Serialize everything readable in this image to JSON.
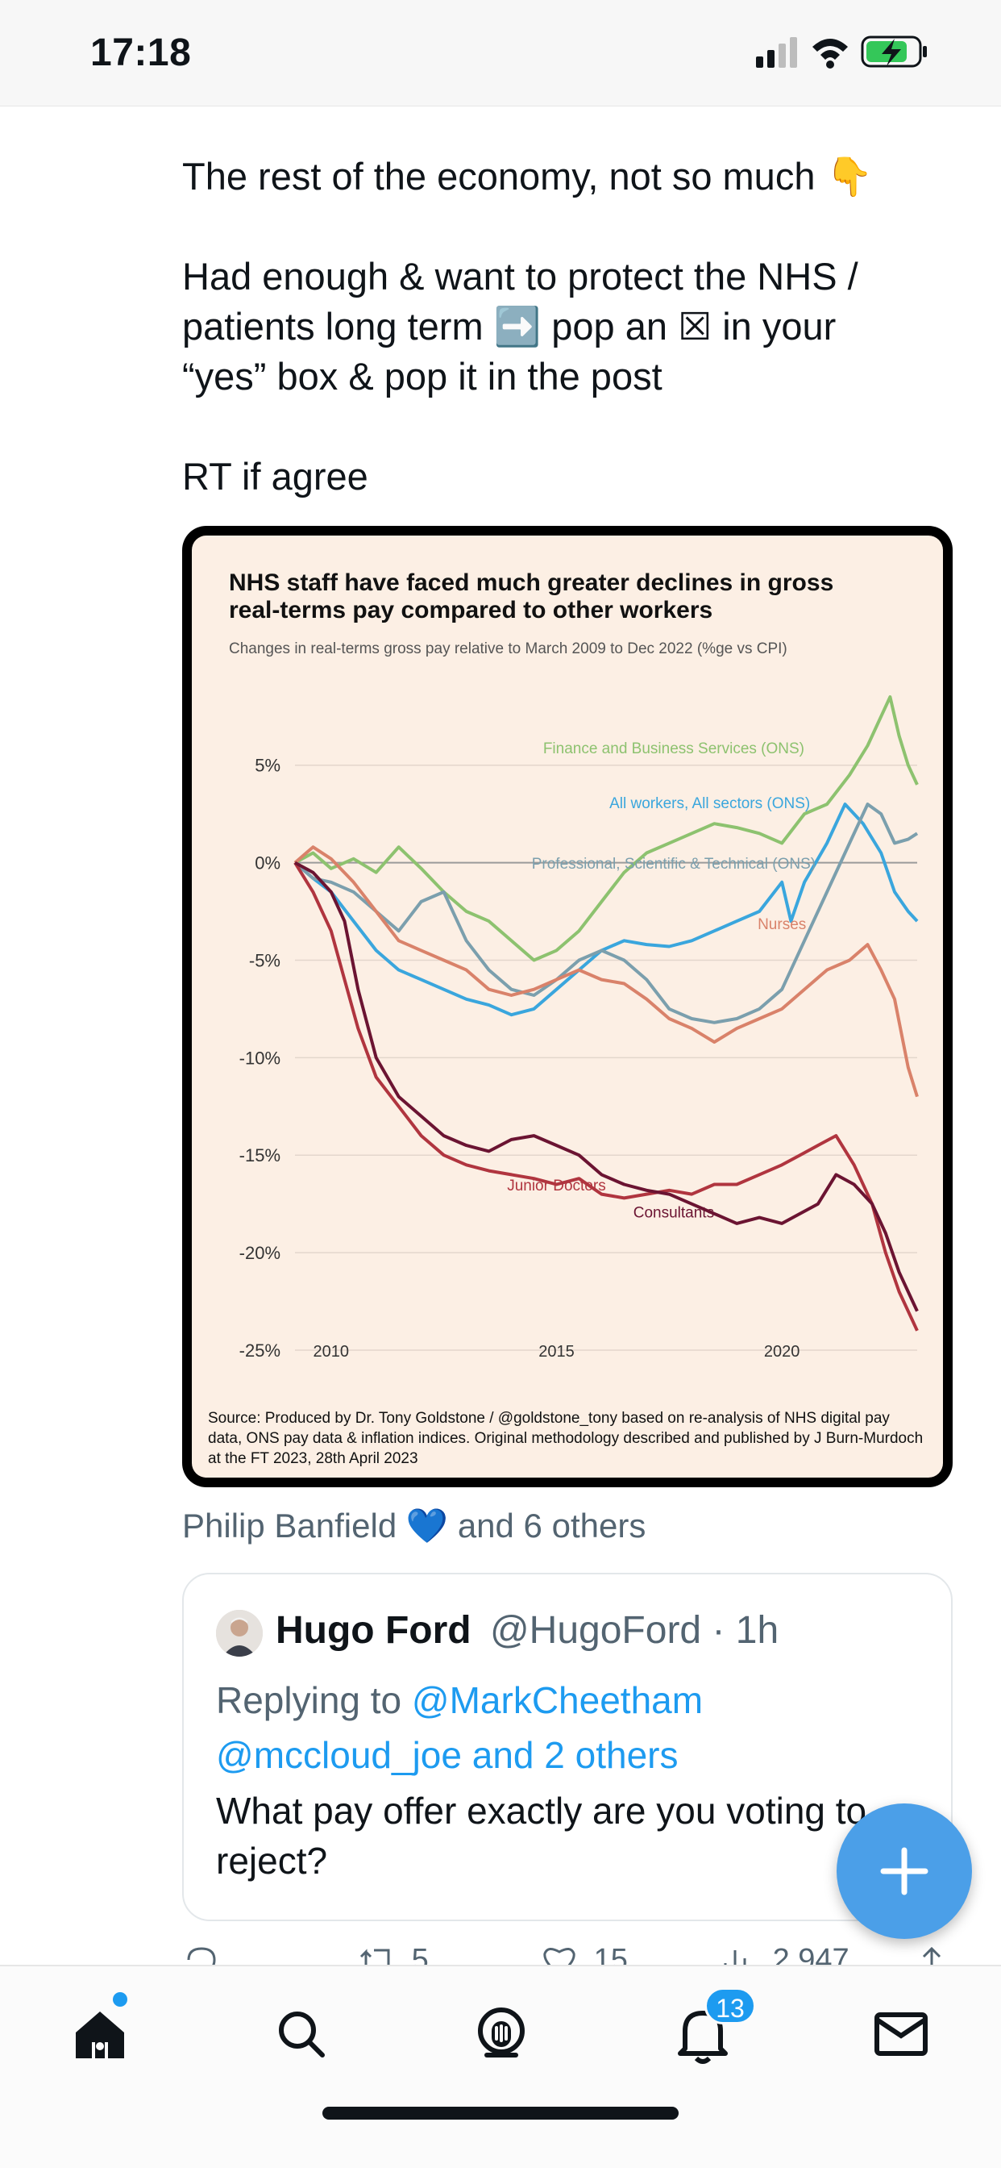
{
  "status_bar": {
    "time": "17:18"
  },
  "tweet": {
    "lines": [
      "The rest of the economy, not so much 👇",
      "Had enough & want to protect the NHS / patients long term ➡️ pop an ☒ in your “yes” box & pop it in the post",
      "RT if agree"
    ]
  },
  "media": {
    "source_note": "Source: Produced by Dr. Tony Goldstone / @goldstone_tony based on re-analysis of NHS digital pay data, ONS pay data & inflation indices. Original methodology described and published by J Burn-Murdoch at the FT 2023, 28th April 2023"
  },
  "chart_data": {
    "type": "line",
    "title": "NHS staff have faced much greater declines in gross real-terms pay compared to other workers",
    "subtitle": "Changes in real-terms gross pay relative to March 2009 to Dec 2022 (%ge vs CPI)",
    "xlabel": "",
    "ylabel": "",
    "xlim": [
      2009.2,
      2023.0
    ],
    "ylim": [
      -25,
      9
    ],
    "x_ticks": [
      2010,
      2015,
      2020
    ],
    "y_ticks": [
      5,
      0,
      -5,
      -10,
      -15,
      -20,
      -25
    ],
    "y_tick_labels": [
      "5%",
      "0%",
      "-5%",
      "-10%",
      "-15%",
      "-20%",
      "-25%"
    ],
    "grid": true,
    "legend": "inline labels",
    "series": [
      {
        "name": "Finance and Business Services (ONS)",
        "color": "#8dc26f",
        "x": [
          2009.2,
          2009.6,
          2010.0,
          2010.5,
          2011.0,
          2011.5,
          2012.0,
          2012.5,
          2013.0,
          2013.5,
          2014.0,
          2014.5,
          2015.0,
          2015.5,
          2016.0,
          2016.5,
          2017.0,
          2017.5,
          2018.0,
          2018.5,
          2019.0,
          2019.5,
          2020.0,
          2020.5,
          2021.0,
          2021.5,
          2021.9,
          2022.2,
          2022.4,
          2022.6,
          2022.8,
          2023.0
        ],
        "y": [
          0,
          0.5,
          -0.3,
          0.2,
          -0.5,
          0.8,
          -0.3,
          -1.5,
          -2.5,
          -3,
          -4,
          -5,
          -4.5,
          -3.5,
          -2,
          -0.5,
          0.5,
          1,
          1.5,
          2,
          1.8,
          1.5,
          1,
          2.5,
          3,
          4.5,
          6,
          7.5,
          8.5,
          6.5,
          5,
          4
        ]
      },
      {
        "name": "All workers, All sectors (ONS)",
        "color": "#3aa6dd",
        "x": [
          2009.2,
          2009.6,
          2010.0,
          2010.5,
          2011.0,
          2011.5,
          2012.0,
          2012.5,
          2013.0,
          2013.5,
          2014.0,
          2014.5,
          2015.0,
          2015.5,
          2016.0,
          2016.5,
          2017.0,
          2017.5,
          2018.0,
          2018.5,
          2019.0,
          2019.5,
          2020.0,
          2020.2,
          2020.5,
          2021.0,
          2021.4,
          2021.8,
          2022.2,
          2022.5,
          2022.8,
          2023.0
        ],
        "y": [
          0,
          -0.8,
          -1.5,
          -3,
          -4.5,
          -5.5,
          -6,
          -6.5,
          -7,
          -7.3,
          -7.8,
          -7.5,
          -6.5,
          -5.5,
          -4.5,
          -4,
          -4.2,
          -4.3,
          -4,
          -3.5,
          -3,
          -2.5,
          -1,
          -3,
          -1,
          1,
          3,
          2,
          0.5,
          -1.5,
          -2.5,
          -3
        ]
      },
      {
        "name": "Professional, Scientific & Technical (ONS)",
        "color": "#7b9fad",
        "x": [
          2009.2,
          2009.6,
          2010.0,
          2010.5,
          2011.0,
          2011.5,
          2012.0,
          2012.5,
          2013.0,
          2013.5,
          2014.0,
          2014.5,
          2015.0,
          2015.5,
          2016.0,
          2016.5,
          2017.0,
          2017.5,
          2018.0,
          2018.5,
          2019.0,
          2019.5,
          2020.0,
          2020.5,
          2021.0,
          2021.5,
          2021.9,
          2022.2,
          2022.5,
          2022.8,
          2023.0
        ],
        "y": [
          0,
          -0.8,
          -1,
          -1.5,
          -2.5,
          -3.5,
          -2,
          -1.5,
          -4,
          -5.5,
          -6.5,
          -6.8,
          -6,
          -5,
          -4.5,
          -5,
          -6,
          -7.5,
          -8,
          -8.2,
          -8,
          -7.5,
          -6.5,
          -4,
          -1.5,
          1,
          3,
          2.5,
          1,
          1.2,
          1.5
        ]
      },
      {
        "name": "Nurses",
        "color": "#d9826a",
        "x": [
          2009.2,
          2009.6,
          2010.0,
          2010.5,
          2011.0,
          2011.5,
          2012.0,
          2012.5,
          2013.0,
          2013.5,
          2014.0,
          2014.5,
          2015.0,
          2015.5,
          2016.0,
          2016.5,
          2017.0,
          2017.5,
          2018.0,
          2018.5,
          2019.0,
          2019.5,
          2020.0,
          2020.5,
          2021.0,
          2021.5,
          2021.9,
          2022.2,
          2022.5,
          2022.8,
          2023.0
        ],
        "y": [
          0,
          0.8,
          0.2,
          -1,
          -2.5,
          -4,
          -4.5,
          -5,
          -5.5,
          -6.5,
          -6.8,
          -6.5,
          -6,
          -5.5,
          -6,
          -6.2,
          -7,
          -8,
          -8.5,
          -9.2,
          -8.5,
          -8,
          -7.5,
          -6.5,
          -5.5,
          -5,
          -4.2,
          -5.5,
          -7,
          -10.5,
          -12
        ]
      },
      {
        "name": "Junior Doctors",
        "color": "#b0353f",
        "x": [
          2009.2,
          2009.6,
          2010.0,
          2010.3,
          2010.6,
          2011.0,
          2011.5,
          2012.0,
          2012.5,
          2013.0,
          2013.5,
          2014.0,
          2014.5,
          2015.0,
          2015.5,
          2016.0,
          2016.5,
          2017.0,
          2017.5,
          2018.0,
          2018.5,
          2019.0,
          2019.5,
          2020.0,
          2020.4,
          2020.8,
          2021.2,
          2021.6,
          2022.0,
          2022.3,
          2022.6,
          2022.9,
          2023.0
        ],
        "y": [
          0,
          -1.5,
          -3.5,
          -6,
          -8.5,
          -11,
          -12.5,
          -14,
          -15,
          -15.5,
          -15.8,
          -16,
          -16.2,
          -16.5,
          -16.2,
          -17,
          -17.2,
          -17,
          -16.8,
          -17,
          -16.5,
          -16.5,
          -16,
          -15.5,
          -15,
          -14.5,
          -14,
          -15.5,
          -17.5,
          -20,
          -22,
          -23.5,
          -24
        ]
      },
      {
        "name": "Consultants",
        "color": "#6b1432",
        "x": [
          2009.2,
          2009.6,
          2010.0,
          2010.3,
          2010.6,
          2011.0,
          2011.5,
          2012.0,
          2012.5,
          2013.0,
          2013.5,
          2014.0,
          2014.5,
          2015.0,
          2015.5,
          2016.0,
          2016.5,
          2017.0,
          2017.5,
          2018.0,
          2018.5,
          2019.0,
          2019.5,
          2020.0,
          2020.4,
          2020.8,
          2021.2,
          2021.6,
          2022.0,
          2022.3,
          2022.6,
          2022.9,
          2023.0
        ],
        "y": [
          0,
          -0.5,
          -1.5,
          -3,
          -6.5,
          -10,
          -12,
          -13,
          -14,
          -14.5,
          -14.8,
          -14.2,
          -14,
          -14.5,
          -15,
          -16,
          -16.5,
          -16.8,
          -17,
          -17.5,
          -18,
          -18.5,
          -18.2,
          -18.5,
          -18,
          -17.5,
          -16,
          -16.5,
          -17.5,
          -19,
          -21,
          -22.5,
          -23
        ]
      }
    ]
  },
  "likers": {
    "names": "Philip Banfield",
    "emoji": "💙",
    "suffix": "and 6 others"
  },
  "reply": {
    "name": "Hugo Ford",
    "handle": "@HugoFord · 1h",
    "replying_prefix": "Replying to",
    "replying_to": "@MarkCheetham @mccloud_joe and 2 others",
    "body": "What pay offer exactly are you voting to reject?"
  },
  "actions": {
    "retweets": "5",
    "likes": "15",
    "views": "2,947"
  },
  "tabbar": {
    "notifications_badge": "13"
  },
  "colors": {
    "accent": "#1d9bf0",
    "fab": "#4b9fe8",
    "muted": "#536471",
    "chart_bg": "#fcefe4"
  }
}
